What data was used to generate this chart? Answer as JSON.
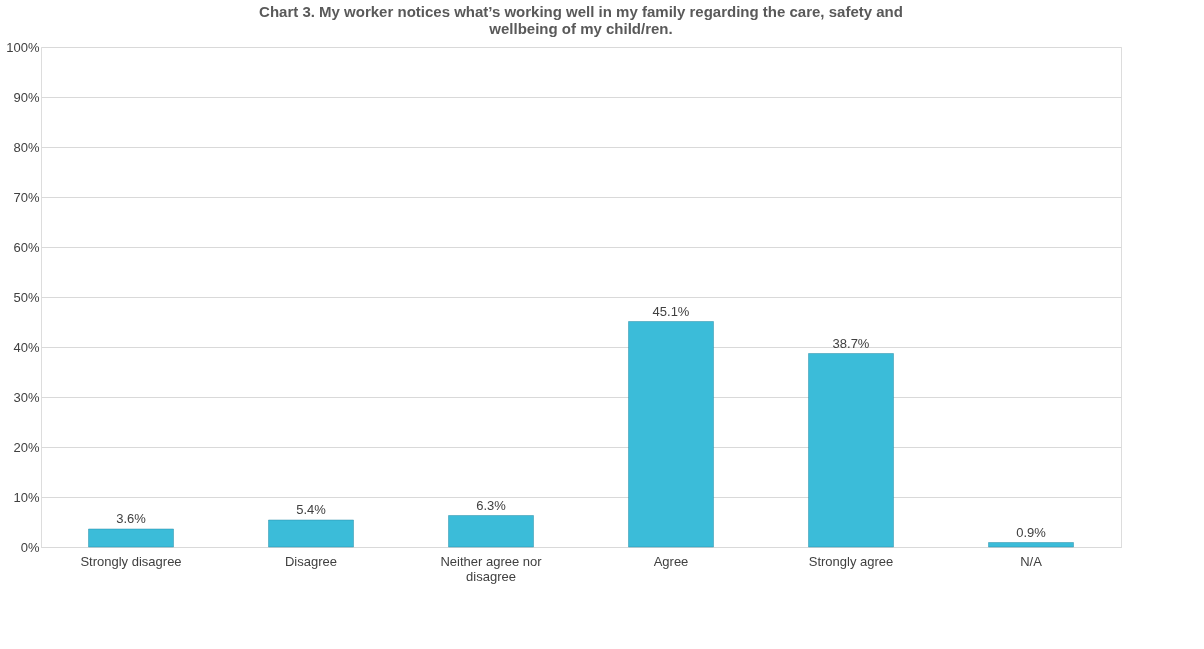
{
  "chart_data": {
    "type": "bar",
    "title": "Chart 3. My worker notices what’s working well in my family regarding the care, safety and wellbeing of my child/ren.",
    "categories": [
      "Strongly disagree",
      "Disagree",
      "Neither agree nor disagree",
      "Agree",
      "Strongly agree",
      "N/A"
    ],
    "values": [
      3.6,
      5.4,
      6.3,
      45.1,
      38.7,
      0.9
    ],
    "value_labels": [
      "3.6%",
      "5.4%",
      "6.3%",
      "45.1%",
      "38.7%",
      "0.9%"
    ],
    "color": "#3bbcd9",
    "ylim": [
      0,
      100
    ],
    "yticks": [
      {
        "value": 0,
        "label": "0%"
      },
      {
        "value": 10,
        "label": "10%"
      },
      {
        "value": 20,
        "label": "20%"
      },
      {
        "value": 30,
        "label": "30%"
      },
      {
        "value": 40,
        "label": "40%"
      },
      {
        "value": 50,
        "label": "50%"
      },
      {
        "value": 60,
        "label": "60%"
      },
      {
        "value": 70,
        "label": "70%"
      },
      {
        "value": 80,
        "label": "80%"
      },
      {
        "value": 90,
        "label": "90%"
      },
      {
        "value": 100,
        "label": "100%"
      }
    ],
    "grid": "y"
  }
}
